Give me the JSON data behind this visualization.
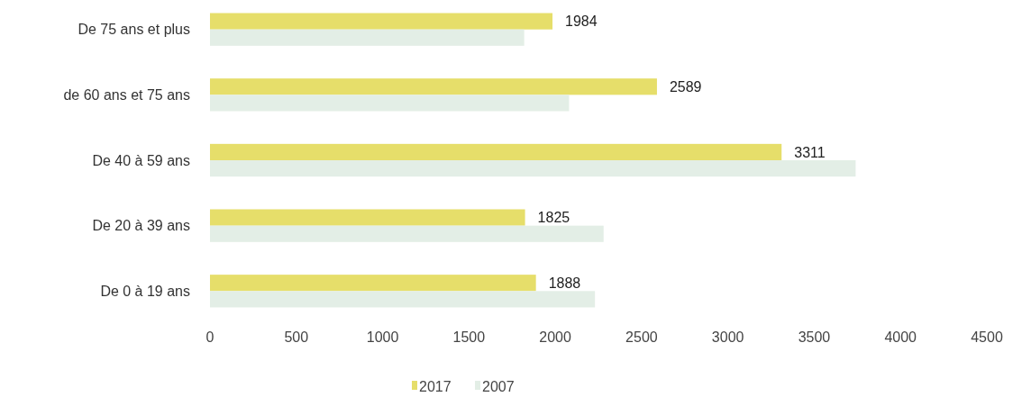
{
  "chart_data": {
    "type": "bar",
    "orientation": "horizontal",
    "categories": [
      "De 75 ans et plus",
      "de 60 ans et 75 ans",
      "De 40 à 59 ans",
      "De 20 à 39 ans",
      "De 0 à 19 ans"
    ],
    "series": [
      {
        "name": "2017",
        "color": "#e6de6a",
        "values": [
          1984,
          2589,
          3311,
          1825,
          1888
        ],
        "value_labels": [
          "1984",
          "2589",
          "3311",
          "1825",
          "1888"
        ]
      },
      {
        "name": "2007",
        "color": "#e3eee6",
        "values": [
          1820,
          2080,
          3740,
          2280,
          2230
        ]
      }
    ],
    "xlim": [
      0,
      4500
    ],
    "xticks": [
      0,
      500,
      1000,
      1500,
      2000,
      2500,
      3000,
      3500,
      4000,
      4500
    ],
    "grid": false,
    "legend": "bottom"
  }
}
